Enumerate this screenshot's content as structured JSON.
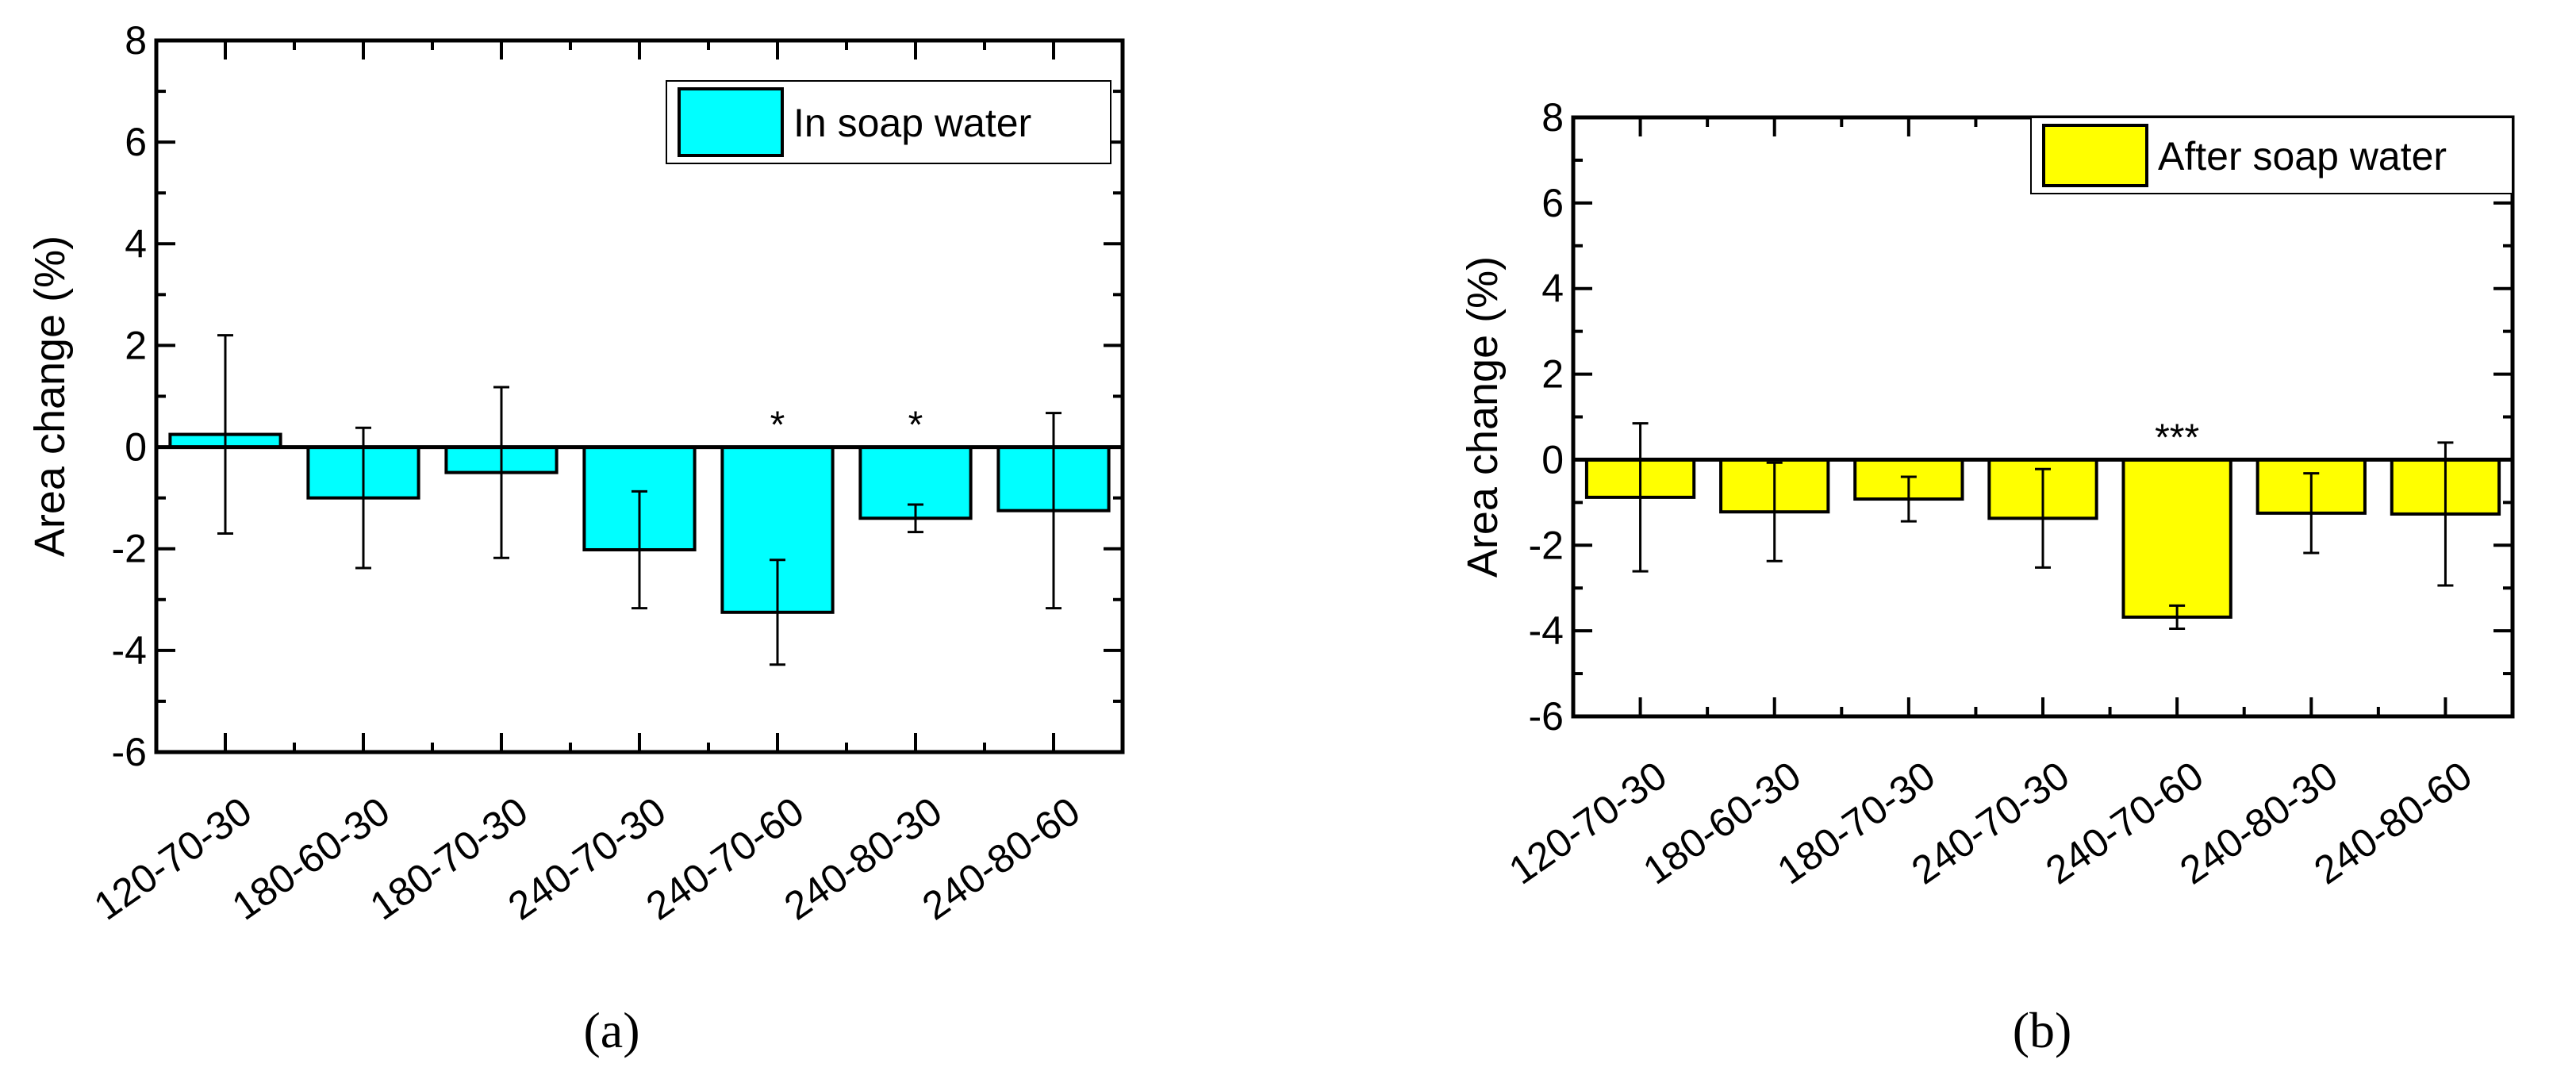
{
  "chart_data": [
    {
      "type": "bar",
      "panel_label": "(a)",
      "ylabel": "Area change (%)",
      "xlabel": "",
      "ylim": [
        -6,
        8
      ],
      "yticks": [
        -6,
        -4,
        -2,
        0,
        2,
        4,
        6,
        8
      ],
      "grid": false,
      "legend_placement": "top-right",
      "categories": [
        "120-70-30",
        "180-60-30",
        "180-70-30",
        "240-70-30",
        "240-70-60",
        "240-80-30",
        "240-80-60"
      ],
      "series": [
        {
          "name": "In soap water",
          "color": "#00FFFF",
          "values": [
            0.25,
            -1.0,
            -0.5,
            -2.02,
            -3.25,
            -1.4,
            -1.25
          ],
          "errors": [
            1.95,
            1.38,
            1.68,
            1.15,
            1.03,
            0.27,
            1.92
          ]
        }
      ],
      "annotations": [
        "",
        "",
        "",
        "",
        "*",
        "*",
        ""
      ]
    },
    {
      "type": "bar",
      "panel_label": "(b)",
      "ylabel": "Area change (%)",
      "xlabel": "",
      "ylim": [
        -6,
        8
      ],
      "yticks": [
        -6,
        -4,
        -2,
        0,
        2,
        4,
        6,
        8
      ],
      "grid": false,
      "legend_placement": "top-right",
      "categories": [
        "120-70-30",
        "180-60-30",
        "180-70-30",
        "240-70-30",
        "240-70-60",
        "240-80-30",
        "240-80-60"
      ],
      "series": [
        {
          "name": "After soap water",
          "color": "#FFFF00",
          "values": [
            -0.88,
            -1.22,
            -0.92,
            -1.37,
            -3.68,
            -1.25,
            -1.27
          ],
          "errors": [
            1.73,
            1.15,
            0.52,
            1.15,
            0.27,
            0.93,
            1.67
          ]
        }
      ],
      "annotations": [
        "",
        "",
        "",
        "",
        "***",
        "",
        ""
      ]
    }
  ]
}
